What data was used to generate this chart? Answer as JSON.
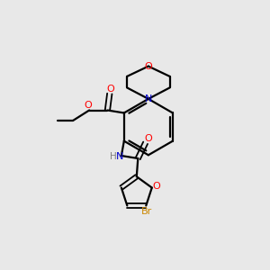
{
  "bg_color": "#e8e8e8",
  "bond_color": "#000000",
  "atom_colors": {
    "O": "#ff0000",
    "N": "#0000cc",
    "Br": "#cc8800",
    "H": "#808080",
    "C": "#000000"
  }
}
